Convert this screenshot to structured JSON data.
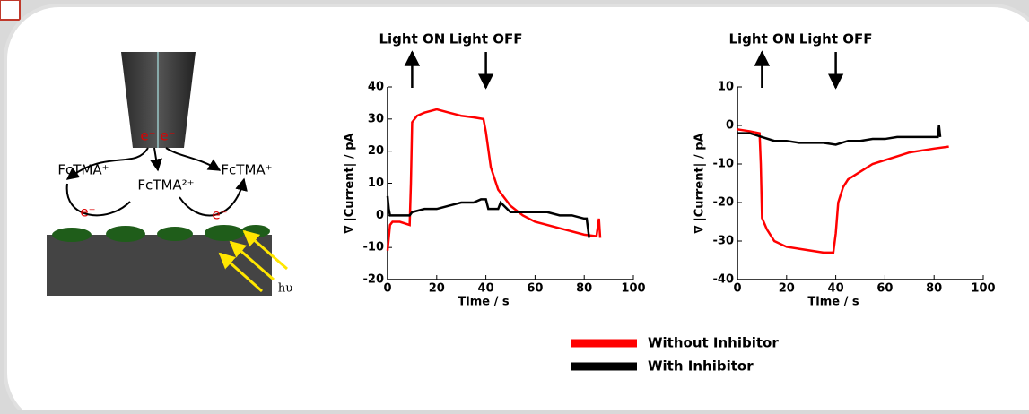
{
  "diagram": {
    "labels": [
      "FcTMA⁺",
      "FcTMA²⁺",
      "FcTMA⁺",
      "e⁻",
      "e⁻",
      "e⁻",
      "e⁻",
      "hυ"
    ]
  },
  "chart_data": [
    {
      "type": "line",
      "xlabel": "Time / s",
      "ylabel": "∇ |Current| / pA",
      "xlim": [
        0,
        100
      ],
      "xticks": [
        0,
        20,
        40,
        60,
        80,
        100
      ],
      "ylim": [
        -20,
        40
      ],
      "yticks": [
        -20,
        -10,
        0,
        10,
        20,
        30,
        40
      ],
      "annotations": [
        {
          "text": "Light ON",
          "x": 10
        },
        {
          "text": "Light OFF",
          "x": 40
        }
      ],
      "series": [
        {
          "name": "Without Inhibitor",
          "color": "#ff0000",
          "x": [
            0,
            1,
            2,
            5,
            9,
            9.5,
            10,
            12,
            15,
            20,
            25,
            30,
            35,
            39,
            40,
            42,
            45,
            50,
            55,
            60,
            65,
            70,
            75,
            80,
            85,
            86,
            86.5
          ],
          "values": [
            -11,
            -3,
            -2,
            -2,
            -3,
            10,
            29,
            31,
            32,
            33,
            32,
            31,
            30.5,
            30,
            26,
            15,
            8,
            3,
            0,
            -2,
            -3,
            -4,
            -5,
            -6,
            -6.5,
            -1,
            -7
          ]
        },
        {
          "name": "With Inhibitor",
          "color": "#000000",
          "x": [
            0,
            0.5,
            1,
            5,
            9,
            10,
            15,
            20,
            25,
            30,
            35,
            38,
            40,
            41,
            45,
            46,
            50,
            55,
            60,
            65,
            70,
            75,
            80,
            81,
            82
          ],
          "values": [
            6,
            2,
            0,
            0,
            0,
            1,
            2,
            2,
            3,
            4,
            4,
            5,
            5,
            2,
            2,
            4,
            1,
            1,
            1,
            1,
            0,
            0,
            -1,
            -1,
            -7
          ]
        }
      ]
    },
    {
      "type": "line",
      "xlabel": "Time / s",
      "ylabel": "∇ |Current| / pA",
      "xlim": [
        0,
        100
      ],
      "xticks": [
        0,
        20,
        40,
        60,
        80,
        100
      ],
      "ylim": [
        -40,
        10
      ],
      "yticks": [
        -40,
        -30,
        -20,
        -10,
        0,
        10
      ],
      "annotations": [
        {
          "text": "Light ON",
          "x": 10
        },
        {
          "text": "Light OFF",
          "x": 40
        }
      ],
      "series": [
        {
          "color": "#ff0000",
          "x": [
            0,
            5,
            9,
            9.5,
            10,
            12,
            15,
            20,
            25,
            30,
            35,
            39,
            40,
            41,
            43,
            45,
            50,
            55,
            60,
            65,
            70,
            75,
            80,
            86
          ],
          "values": [
            -1,
            -1.5,
            -2,
            -10,
            -24,
            -27,
            -30,
            -31.5,
            -32,
            -32.5,
            -33,
            -33,
            -28,
            -20,
            -16,
            -14,
            -12,
            -10,
            -9,
            -8,
            -7,
            -6.5,
            -6,
            -5.5
          ]
        },
        {
          "color": "#000000",
          "x": [
            0,
            5,
            10,
            15,
            20,
            25,
            30,
            35,
            40,
            45,
            50,
            55,
            60,
            65,
            70,
            75,
            80,
            81.5,
            82,
            82.5
          ],
          "values": [
            -2,
            -2,
            -3,
            -4,
            -4,
            -4.5,
            -4.5,
            -4.5,
            -5,
            -4,
            -4,
            -3.5,
            -3.5,
            -3,
            -3,
            -3,
            -3,
            -3,
            0,
            -3
          ]
        }
      ]
    }
  ]
}
